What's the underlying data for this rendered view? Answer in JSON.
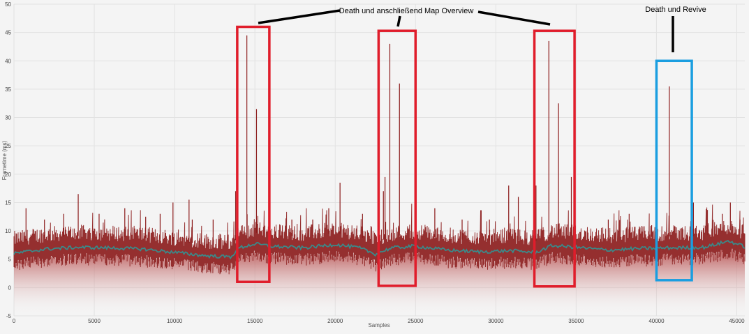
{
  "chart_data": {
    "type": "line",
    "title": "",
    "xlabel": "Samples",
    "ylabel": "Frametime (ms)",
    "xlim": [
      0,
      45500
    ],
    "ylim": [
      -5,
      50
    ],
    "x_ticks": [
      0,
      5000,
      10000,
      15000,
      20000,
      25000,
      30000,
      35000,
      40000,
      45000
    ],
    "y_ticks": [
      -5,
      0,
      5,
      10,
      15,
      20,
      25,
      30,
      35,
      40,
      45,
      50
    ],
    "grid": true,
    "series": [
      {
        "color": "#8b1a1a",
        "description": "per-sample frametime, baseline ~6-9 ms",
        "spikes": [
          {
            "x": 750,
            "y": 14
          },
          {
            "x": 1900,
            "y": 12
          },
          {
            "x": 3100,
            "y": 13
          },
          {
            "x": 4000,
            "y": 16.5
          },
          {
            "x": 5300,
            "y": 13
          },
          {
            "x": 6900,
            "y": 14
          },
          {
            "x": 8200,
            "y": 12.5
          },
          {
            "x": 9100,
            "y": 13
          },
          {
            "x": 9900,
            "y": 15
          },
          {
            "x": 10900,
            "y": 15.5
          },
          {
            "x": 11100,
            "y": 12
          },
          {
            "x": 12400,
            "y": 12
          },
          {
            "x": 13800,
            "y": 17
          },
          {
            "x": 14500,
            "y": 44.5
          },
          {
            "x": 15100,
            "y": 31.5
          },
          {
            "x": 17300,
            "y": 12
          },
          {
            "x": 18600,
            "y": 12
          },
          {
            "x": 19600,
            "y": 14
          },
          {
            "x": 20300,
            "y": 18.5
          },
          {
            "x": 21700,
            "y": 13
          },
          {
            "x": 23000,
            "y": 17
          },
          {
            "x": 23100,
            "y": 19.5
          },
          {
            "x": 23400,
            "y": 43
          },
          {
            "x": 24000,
            "y": 36
          },
          {
            "x": 26200,
            "y": 14
          },
          {
            "x": 27900,
            "y": 12
          },
          {
            "x": 29600,
            "y": 12
          },
          {
            "x": 30800,
            "y": 18
          },
          {
            "x": 31400,
            "y": 16
          },
          {
            "x": 32500,
            "y": 18
          },
          {
            "x": 33300,
            "y": 43.5
          },
          {
            "x": 33900,
            "y": 32.5
          },
          {
            "x": 34700,
            "y": 19.5
          },
          {
            "x": 37000,
            "y": 12
          },
          {
            "x": 38300,
            "y": 13
          },
          {
            "x": 39700,
            "y": 11
          },
          {
            "x": 40800,
            "y": 35.5
          },
          {
            "x": 42300,
            "y": 15
          },
          {
            "x": 43200,
            "y": 11
          },
          {
            "x": 44100,
            "y": 13
          },
          {
            "x": 44600,
            "y": 15
          },
          {
            "x": 45200,
            "y": 12
          }
        ]
      },
      {
        "color": "#3a8a8a",
        "description": "smoothed moving average",
        "points": [
          {
            "x": 0,
            "y": 6.0
          },
          {
            "x": 2000,
            "y": 6.8
          },
          {
            "x": 4000,
            "y": 7.1
          },
          {
            "x": 6000,
            "y": 7.0
          },
          {
            "x": 8000,
            "y": 6.8
          },
          {
            "x": 10000,
            "y": 6.2
          },
          {
            "x": 12000,
            "y": 5.6
          },
          {
            "x": 13500,
            "y": 5.4
          },
          {
            "x": 14000,
            "y": 7.0
          },
          {
            "x": 15000,
            "y": 7.7
          },
          {
            "x": 16000,
            "y": 7.3
          },
          {
            "x": 18000,
            "y": 7.0
          },
          {
            "x": 20000,
            "y": 7.6
          },
          {
            "x": 21500,
            "y": 7.0
          },
          {
            "x": 22500,
            "y": 5.9
          },
          {
            "x": 23500,
            "y": 7.0
          },
          {
            "x": 25000,
            "y": 7.3
          },
          {
            "x": 27000,
            "y": 6.6
          },
          {
            "x": 29000,
            "y": 6.3
          },
          {
            "x": 31000,
            "y": 6.5
          },
          {
            "x": 32500,
            "y": 6.2
          },
          {
            "x": 33500,
            "y": 7.4
          },
          {
            "x": 35000,
            "y": 7.1
          },
          {
            "x": 37000,
            "y": 6.6
          },
          {
            "x": 39000,
            "y": 6.9
          },
          {
            "x": 41000,
            "y": 7.0
          },
          {
            "x": 43000,
            "y": 7.1
          },
          {
            "x": 44500,
            "y": 8.2
          },
          {
            "x": 45500,
            "y": 7.2
          }
        ]
      }
    ],
    "highlight_boxes": [
      {
        "color": "#e01d2b",
        "x0": 13900,
        "x1": 15900,
        "y0": 1,
        "y1": 46
      },
      {
        "color": "#e01d2b",
        "x0": 22700,
        "x1": 25000,
        "y0": 0.3,
        "y1": 45.3
      },
      {
        "color": "#e01d2b",
        "x0": 32400,
        "x1": 34900,
        "y0": 0.2,
        "y1": 45.3
      },
      {
        "color": "#1a9ee0",
        "x0": 40000,
        "x1": 42200,
        "y0": 1.3,
        "y1": 40
      }
    ],
    "annotations": [
      {
        "text": "Death und anschließend Map Overview",
        "color": "#000000"
      },
      {
        "text": "Death und Revive",
        "color": "#000000"
      }
    ]
  }
}
